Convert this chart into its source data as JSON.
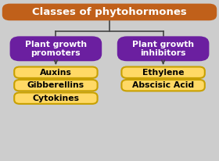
{
  "title": "Classes of phytohormones",
  "title_bg": "#C0601A",
  "title_text_color": "#FFFFFF",
  "left_node_text": "Plant growth\npromoters",
  "right_node_text": "Plant growth\ninhibitors",
  "node_bg": "#6B1FA0",
  "node_text_color": "#FFFFFF",
  "left_leaves": [
    "Auxins",
    "Gibberellins",
    "Cytokines"
  ],
  "right_leaves": [
    "Ethylene",
    "Abscisic Acid"
  ],
  "leaf_bg": "#FFD966",
  "leaf_border": "#C8A000",
  "leaf_text_color": "#000000",
  "bg_color": "#CDCDCD",
  "line_color": "#444444",
  "fig_w": 2.8,
  "fig_h": 2.06,
  "dpi": 100
}
